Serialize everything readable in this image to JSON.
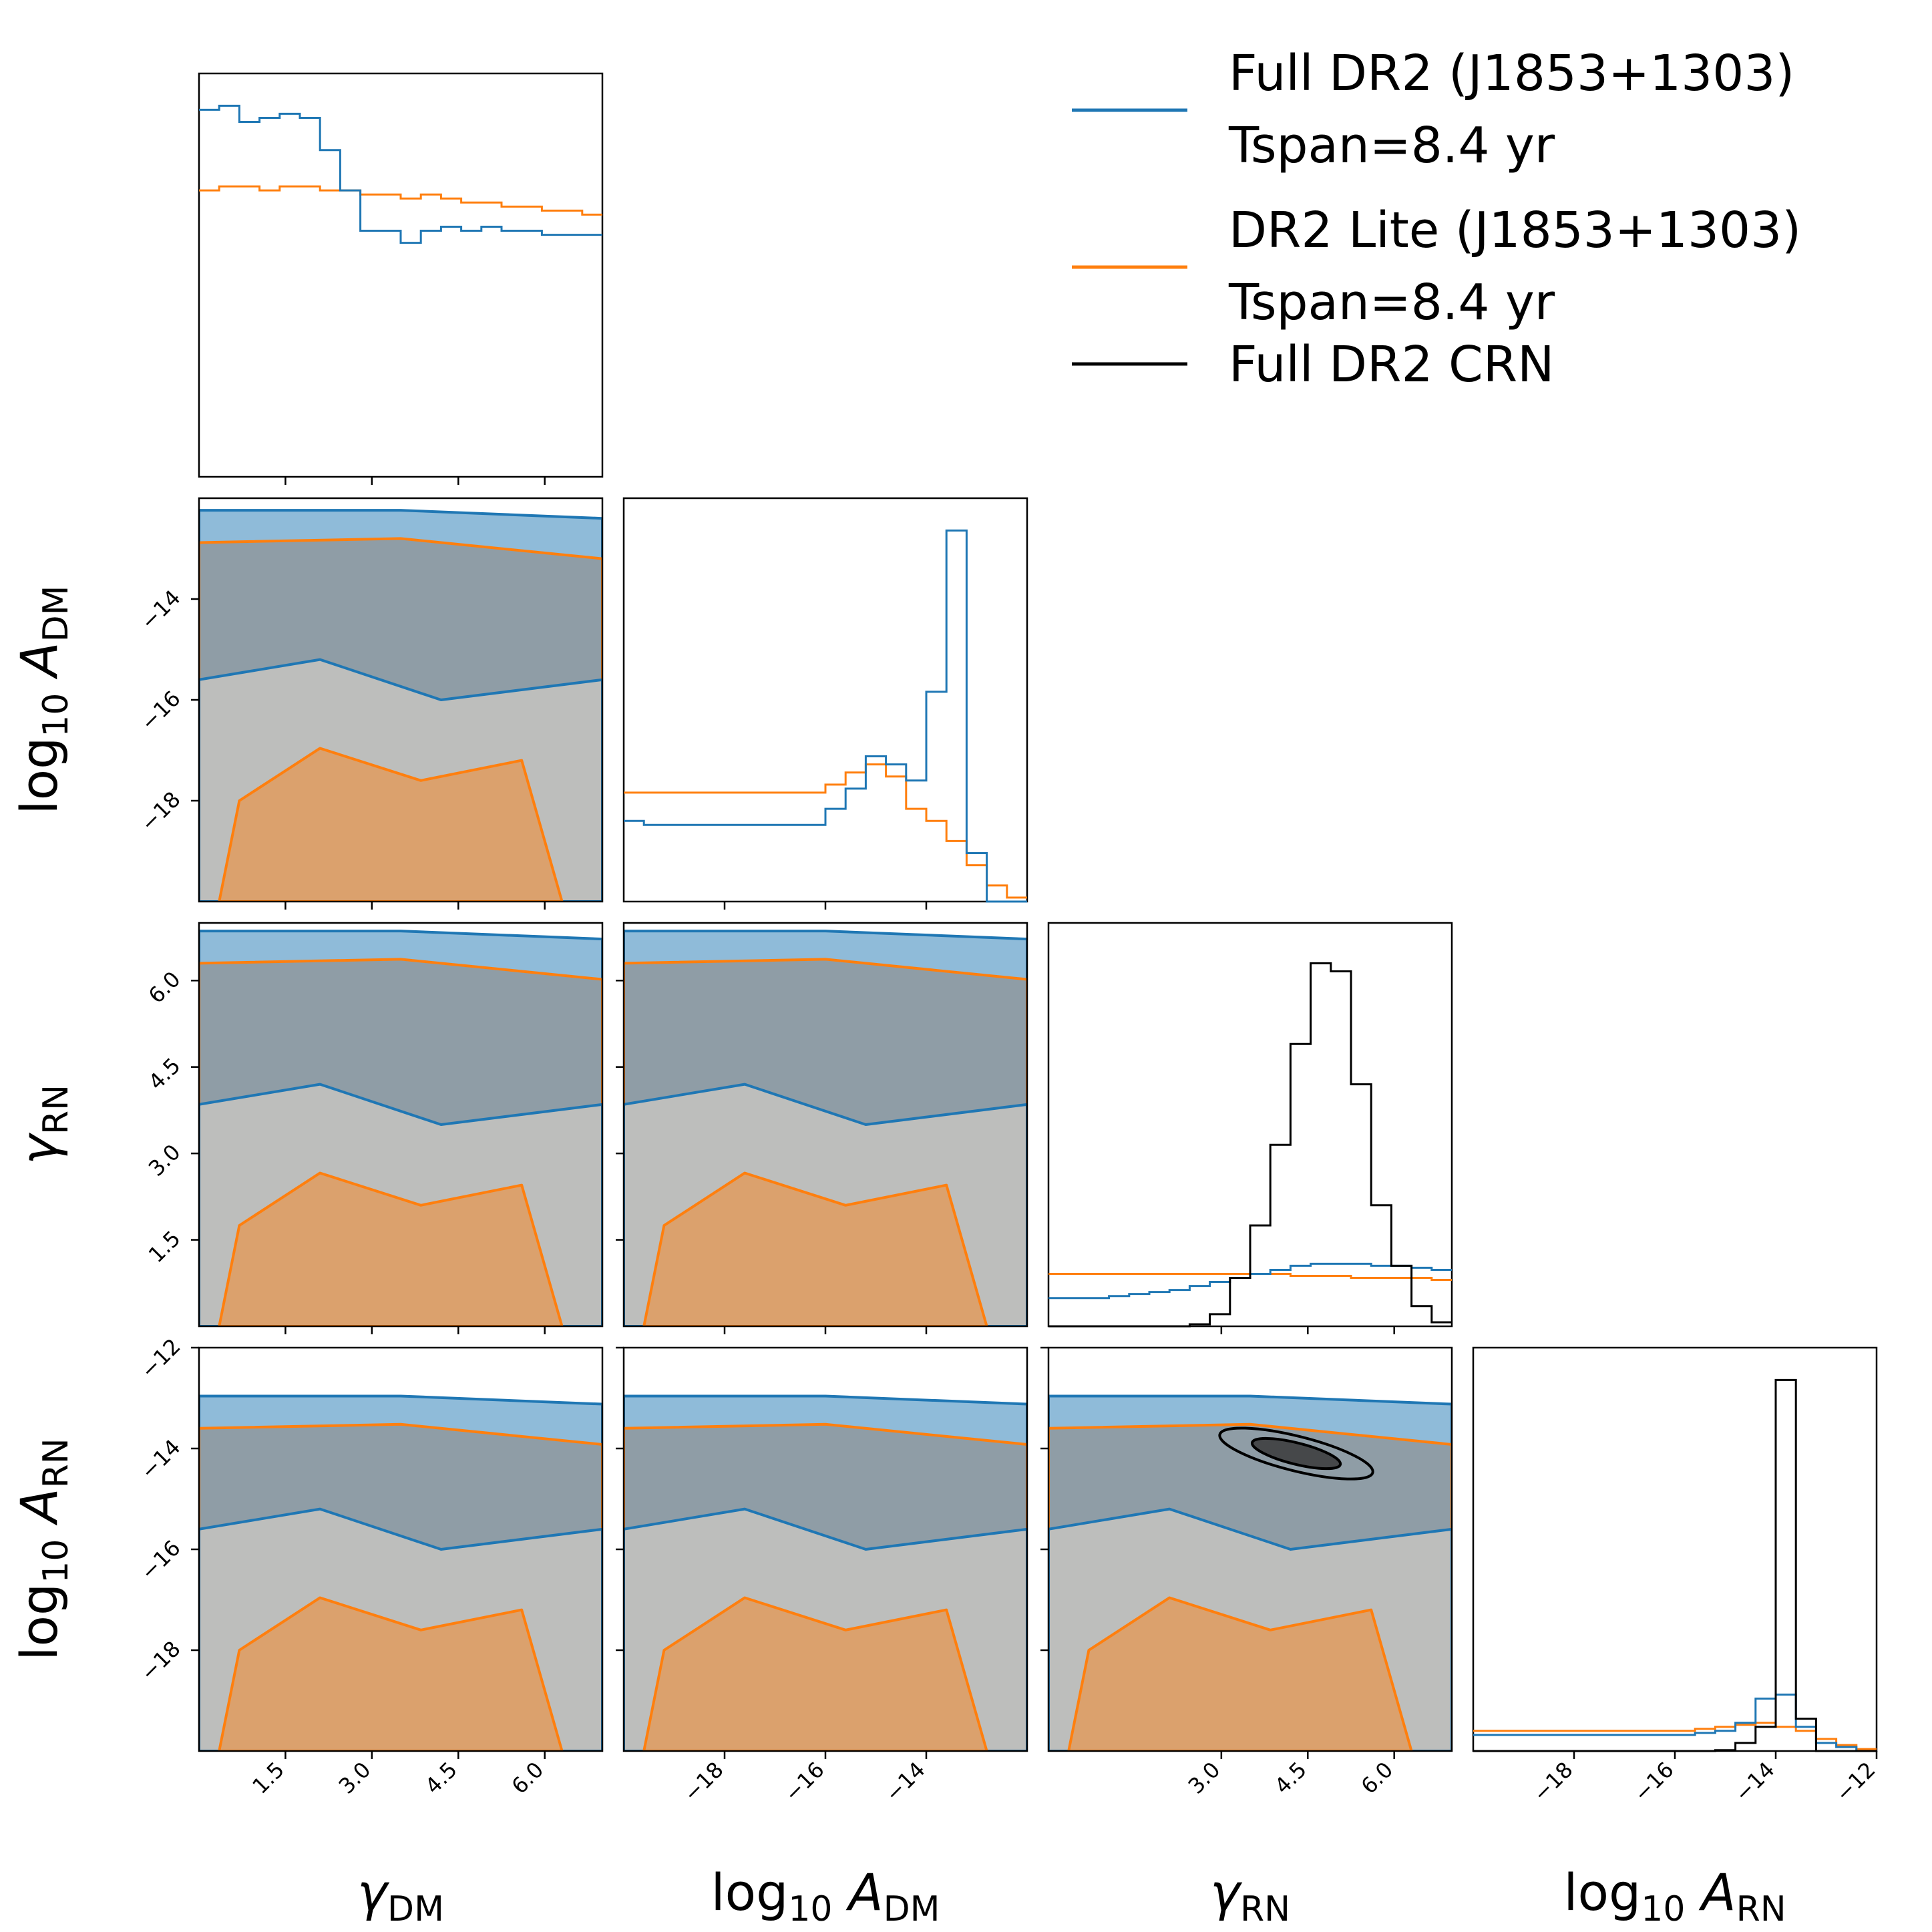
{
  "colors": {
    "full": "#1f77b4",
    "lite": "#ff7f0e",
    "crn": "#000000",
    "full_fill": "#1f77b4",
    "lite_fill": "#ff7f0e",
    "overlap_fill": "#8f9aa0",
    "mid_fill": "#c6c4bf",
    "bg": "#ffffff"
  },
  "legend": {
    "entries": [
      {
        "line1": "Full DR2 (J1853+1303)",
        "line2": "Tspan=8.4 yr",
        "color": "#1f77b4"
      },
      {
        "line1": "DR2 Lite (J1853+1303)",
        "line2": "Tspan=8.4 yr",
        "color": "#ff7f0e"
      },
      {
        "line1": "Full DR2 CRN",
        "line2": "",
        "color": "#000000"
      }
    ]
  },
  "axis_labels": {
    "x": [
      {
        "main": "γ",
        "sub": "DM"
      },
      {
        "main": "log",
        "sub": "10",
        "var": "A",
        "varsub": "DM"
      },
      {
        "main": "γ",
        "sub": "RN"
      },
      {
        "main": "log",
        "sub": "10",
        "var": "A",
        "varsub": "RN"
      }
    ],
    "y": [
      {
        "main": "log",
        "sub": "10",
        "var": "A",
        "varsub": "DM"
      },
      {
        "main": "γ",
        "sub": "RN"
      },
      {
        "main": "log",
        "sub": "10",
        "var": "A",
        "varsub": "RN"
      }
    ]
  },
  "chart_data": {
    "type": "corner",
    "parameters": [
      "γDM",
      "log10 ADM",
      "γRN",
      "log10 ARN"
    ],
    "ranges": {
      "gamma_DM": [
        0,
        7
      ],
      "log10_A_DM": [
        -20,
        -12
      ],
      "gamma_RN": [
        0,
        7
      ],
      "log10_A_RN": [
        -20,
        -12
      ]
    },
    "ticks": {
      "gamma_DM": [
        "1.5",
        "3.0",
        "4.5",
        "6.0"
      ],
      "log10_A_DM": [
        "−18",
        "−16",
        "−14"
      ],
      "gamma_RN": [
        "3.0",
        "4.5",
        "6.0"
      ],
      "gamma_RN_y": [
        "1.5",
        "3.0",
        "4.5",
        "6.0"
      ],
      "log10_A_RN": [
        "−18",
        "−16",
        "−14",
        "−12"
      ]
    },
    "tick_values": {
      "gamma_DM": [
        1.5,
        3.0,
        4.5,
        6.0
      ],
      "log10_A_DM": [
        -18,
        -16,
        -14
      ],
      "gamma_RN": [
        3.0,
        4.5,
        6.0
      ],
      "gamma_RN_y": [
        1.5,
        3.0,
        4.5,
        6.0
      ],
      "log10_A_RN": [
        -18,
        -16,
        -14,
        -12
      ]
    },
    "histograms": {
      "gamma_DM": {
        "x": [
          0.0,
          0.35,
          0.7,
          1.05,
          1.4,
          1.75,
          2.1,
          2.45,
          2.8,
          3.15,
          3.5,
          3.85,
          4.2,
          4.55,
          4.9,
          5.25,
          5.6,
          5.95,
          6.3,
          6.65
        ],
        "full": [
          0.91,
          0.92,
          0.88,
          0.89,
          0.9,
          0.89,
          0.81,
          0.71,
          0.61,
          0.61,
          0.58,
          0.61,
          0.62,
          0.61,
          0.62,
          0.61,
          0.61,
          0.6,
          0.6,
          0.6
        ],
        "lite": [
          0.71,
          0.72,
          0.72,
          0.71,
          0.72,
          0.72,
          0.71,
          0.71,
          0.7,
          0.7,
          0.69,
          0.7,
          0.69,
          0.68,
          0.68,
          0.67,
          0.67,
          0.66,
          0.66,
          0.65
        ]
      },
      "log10_A_DM": {
        "x": [
          -20,
          -19.6,
          -19.2,
          -18.8,
          -18.4,
          -18.0,
          -17.6,
          -17.2,
          -16.8,
          -16.4,
          -16.0,
          -15.6,
          -15.2,
          -14.8,
          -14.4,
          -14.0,
          -13.6,
          -13.2,
          -12.8,
          -12.4
        ],
        "full": [
          0.2,
          0.19,
          0.19,
          0.19,
          0.19,
          0.19,
          0.19,
          0.19,
          0.19,
          0.19,
          0.23,
          0.28,
          0.36,
          0.34,
          0.3,
          0.52,
          0.92,
          0.12,
          0.0,
          0.0
        ],
        "lite": [
          0.27,
          0.27,
          0.27,
          0.27,
          0.27,
          0.27,
          0.27,
          0.27,
          0.27,
          0.27,
          0.29,
          0.32,
          0.34,
          0.31,
          0.23,
          0.2,
          0.15,
          0.09,
          0.04,
          0.01
        ]
      },
      "gamma_RN": {
        "x": [
          0.0,
          0.35,
          0.7,
          1.05,
          1.4,
          1.75,
          2.1,
          2.45,
          2.8,
          3.15,
          3.5,
          3.85,
          4.2,
          4.55,
          4.9,
          5.25,
          5.6,
          5.95,
          6.3,
          6.65
        ],
        "full": [
          0.07,
          0.07,
          0.07,
          0.075,
          0.08,
          0.085,
          0.09,
          0.1,
          0.11,
          0.12,
          0.13,
          0.14,
          0.15,
          0.155,
          0.155,
          0.155,
          0.15,
          0.15,
          0.145,
          0.14
        ],
        "lite": [
          0.13,
          0.13,
          0.13,
          0.13,
          0.13,
          0.13,
          0.13,
          0.13,
          0.13,
          0.13,
          0.13,
          0.13,
          0.125,
          0.125,
          0.125,
          0.12,
          0.12,
          0.12,
          0.12,
          0.115
        ],
        "crn": [
          0,
          0,
          0,
          0,
          0,
          0,
          0,
          0.005,
          0.03,
          0.12,
          0.25,
          0.45,
          0.7,
          0.9,
          0.88,
          0.6,
          0.3,
          0.15,
          0.05,
          0.01
        ]
      },
      "log10_A_RN": {
        "x": [
          -20,
          -19.6,
          -19.2,
          -18.8,
          -18.4,
          -18.0,
          -17.6,
          -17.2,
          -16.8,
          -16.4,
          -16.0,
          -15.6,
          -15.2,
          -14.8,
          -14.4,
          -14.0,
          -13.6,
          -13.2,
          -12.8,
          -12.4
        ],
        "full": [
          0.04,
          0.04,
          0.04,
          0.04,
          0.04,
          0.04,
          0.04,
          0.04,
          0.04,
          0.04,
          0.04,
          0.045,
          0.05,
          0.07,
          0.13,
          0.14,
          0.06,
          0.02,
          0.01,
          0.0
        ],
        "lite": [
          0.05,
          0.05,
          0.05,
          0.05,
          0.05,
          0.05,
          0.05,
          0.05,
          0.05,
          0.05,
          0.05,
          0.055,
          0.06,
          0.065,
          0.07,
          0.06,
          0.05,
          0.03,
          0.015,
          0.005
        ],
        "crn": [
          0,
          0,
          0,
          0,
          0,
          0,
          0,
          0,
          0,
          0,
          0,
          0,
          0.002,
          0.02,
          0.06,
          0.92,
          0.08,
          0.0,
          0.0,
          0.0
        ]
      }
    },
    "crn_2d": {
      "panel": "gamma_RN vs log10_A_RN",
      "center": [
        4.3,
        -14.1
      ],
      "contours": "two nested ellipses, 1-sigma and 2-sigma"
    }
  }
}
